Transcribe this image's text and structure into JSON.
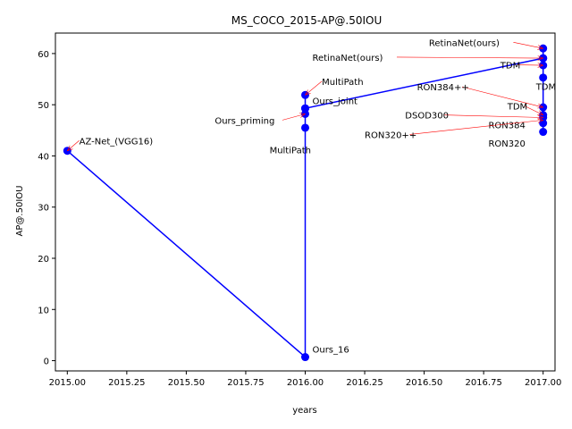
{
  "chart_data": {
    "type": "line",
    "title": "MS_COCO_2015-AP@.50IOU",
    "xlabel": "years",
    "ylabel": "AP@.50IOU",
    "xlim": [
      2014.95,
      2017.05
    ],
    "ylim": [
      -2,
      64
    ],
    "xticks": [
      "2015.00",
      "2015.25",
      "2015.50",
      "2015.75",
      "2016.00",
      "2016.25",
      "2016.50",
      "2016.75",
      "2017.00"
    ],
    "yticks": [
      "0",
      "10",
      "20",
      "30",
      "40",
      "50",
      "60"
    ],
    "colors": {
      "line": "#0000ff",
      "marker": "#0000ff",
      "arrow": "#ff0000"
    },
    "series": [
      {
        "points": [
          {
            "x": 2015.0,
            "y": 41.0
          },
          {
            "x": 2016.0,
            "y": 0.7
          },
          {
            "x": 2016.0,
            "y": 45.5
          },
          {
            "x": 2016.0,
            "y": 48.2
          },
          {
            "x": 2016.0,
            "y": 49.3
          },
          {
            "x": 2016.0,
            "y": 51.9
          },
          {
            "x": 2016.0,
            "y": 49.3
          },
          {
            "x": 2017.0,
            "y": 59.1
          },
          {
            "x": 2017.0,
            "y": 61.0
          },
          {
            "x": 2017.0,
            "y": 59.1
          },
          {
            "x": 2017.0,
            "y": 57.7
          },
          {
            "x": 2017.0,
            "y": 55.3
          },
          {
            "x": 2017.0,
            "y": 49.5
          },
          {
            "x": 2017.0,
            "y": 48.0
          },
          {
            "x": 2017.0,
            "y": 47.5
          },
          {
            "x": 2017.0,
            "y": 46.4
          },
          {
            "x": 2017.0,
            "y": 44.7
          }
        ]
      }
    ],
    "annotations": [
      {
        "text": "AZ-Net_(VGG16)",
        "x": 2015.0,
        "y": 41.0,
        "tx": 2015.05,
        "ty": 42.3,
        "arrow": true
      },
      {
        "text": "Ours_16",
        "x": 2016.0,
        "y": 0.7,
        "tx": 2016.03,
        "ty": 1.6,
        "arrow": false
      },
      {
        "text": "MultiPath",
        "x": 2016.0,
        "y": 45.5,
        "tx": 2015.85,
        "ty": 40.5,
        "arrow": false
      },
      {
        "text": "Ours_priming",
        "x": 2016.0,
        "y": 48.2,
        "tx": 2015.62,
        "ty": 46.3,
        "arrow": true
      },
      {
        "text": "Ours_joint",
        "x": 2016.0,
        "y": 49.3,
        "tx": 2016.03,
        "ty": 50.1,
        "arrow": false
      },
      {
        "text": "MultiPath",
        "x": 2016.0,
        "y": 51.9,
        "tx": 2016.07,
        "ty": 53.9,
        "arrow": true
      },
      {
        "text": "RetinaNet(ours)",
        "x": 2017.0,
        "y": 61.0,
        "tx": 2016.52,
        "ty": 61.5,
        "arrow": true
      },
      {
        "text": "RetinaNet(ours)",
        "x": 2017.0,
        "y": 59.1,
        "tx": 2016.03,
        "ty": 58.6,
        "arrow": true
      },
      {
        "text": "TDM",
        "x": 2017.0,
        "y": 57.7,
        "tx": 2016.82,
        "ty": 57.1,
        "arrow": true
      },
      {
        "text": "TDM",
        "x": 2017.0,
        "y": 55.3,
        "tx": 2016.97,
        "ty": 52.9,
        "arrow": false
      },
      {
        "text": "RON384++",
        "x": 2017.0,
        "y": 49.5,
        "tx": 2016.47,
        "ty": 52.8,
        "arrow": true
      },
      {
        "text": "TDM",
        "x": 2017.0,
        "y": 48.0,
        "tx": 2016.85,
        "ty": 49.1,
        "arrow": true
      },
      {
        "text": "DSOD300",
        "x": 2017.0,
        "y": 47.5,
        "tx": 2016.42,
        "ty": 47.3,
        "arrow": true
      },
      {
        "text": "RON384",
        "x": 2017.0,
        "y": 46.4,
        "tx": 2016.77,
        "ty": 45.4,
        "arrow": false
      },
      {
        "text": "RON320++",
        "x": 2017.0,
        "y": 47.0,
        "tx": 2016.25,
        "ty": 43.5,
        "arrow": true
      },
      {
        "text": "RON320",
        "x": 2017.0,
        "y": 44.7,
        "tx": 2016.77,
        "ty": 41.8,
        "arrow": false
      }
    ]
  }
}
